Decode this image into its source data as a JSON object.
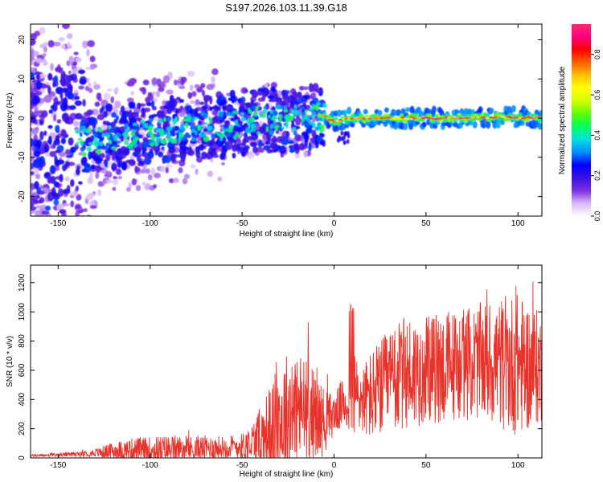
{
  "title": "S197.2026.103.11.39.G18",
  "chart_data": [
    {
      "type": "heatmap",
      "xlabel": "Height of straight line (km)",
      "ylabel": "Frequency (Hz)",
      "xlim": [
        -165,
        113
      ],
      "ylim": [
        -25,
        24
      ],
      "xticks": [
        -150,
        -100,
        -50,
        0,
        50,
        100
      ],
      "xtick_labels": [
        "-150",
        "-100",
        "-50",
        "0",
        "50",
        "100"
      ],
      "yticks": [
        -20,
        -10,
        0,
        10,
        20
      ],
      "ytick_labels": [
        "-20",
        "-10",
        "0",
        "10",
        "20"
      ],
      "colorbar": {
        "label": "Normalized spectral amplitude",
        "range": [
          0,
          0.95
        ],
        "ticks": [
          0.0,
          0.2,
          0.4,
          0.6,
          0.8
        ],
        "tick_labels": [
          "0.0",
          "0.2",
          "0.4",
          "0.6",
          "0.8"
        ],
        "colormap": [
          "#ffffff",
          "#d8b8f8",
          "#7a2fe0",
          "#3a10e0",
          "#0000ff",
          "#0090ff",
          "#00e0e0",
          "#00ff60",
          "#60ff00",
          "#d0ff00",
          "#ffff00",
          "#ffc000",
          "#ff6000",
          "#ff0000",
          "#ff0080",
          "#ff2a70"
        ]
      },
      "ridge": {
        "description_points": [
          [
            -140,
            -6
          ],
          [
            -120,
            -5
          ],
          [
            -100,
            -4
          ],
          [
            -80,
            -2
          ],
          [
            -60,
            -2
          ],
          [
            -40,
            -0.5
          ],
          [
            -20,
            -0.5
          ],
          [
            -5,
            0.5
          ],
          [
            0,
            -1
          ],
          [
            10,
            0
          ],
          [
            50,
            0
          ],
          [
            100,
            0.3
          ],
          [
            112,
            0
          ]
        ]
      }
    },
    {
      "type": "line",
      "xlabel": "Height of straight line (km)",
      "ylabel": "SNR (10 * v/v)",
      "xlim": [
        -165,
        113
      ],
      "ylim": [
        0,
        1320
      ],
      "xticks": [
        -150,
        -100,
        -50,
        0,
        50,
        100
      ],
      "xtick_labels": [
        "-150",
        "-100",
        "-50",
        "0",
        "50",
        "100"
      ],
      "yticks": [
        0,
        200,
        400,
        600,
        800,
        1000,
        1200
      ],
      "ytick_labels": [
        "0",
        "200",
        "400",
        "600",
        "800",
        "1000",
        "1200"
      ],
      "color": "#e8322a",
      "envelope": {
        "x": [
          -165,
          -150,
          -140,
          -130,
          -120,
          -110,
          -100,
          -90,
          -80,
          -70,
          -60,
          -50,
          -45,
          -40,
          -35,
          -30,
          -25,
          -20,
          -15,
          -10,
          -5,
          0,
          5,
          10,
          15,
          20,
          30,
          40,
          50,
          60,
          70,
          80,
          90,
          100,
          110,
          113
        ],
        "base": [
          15,
          20,
          25,
          35,
          45,
          55,
          55,
          60,
          60,
          65,
          70,
          80,
          100,
          130,
          180,
          240,
          300,
          330,
          320,
          280,
          250,
          300,
          380,
          430,
          400,
          420,
          520,
          580,
          600,
          620,
          640,
          660,
          650,
          640,
          620,
          600
        ],
        "amp": [
          10,
          15,
          20,
          30,
          70,
          90,
          100,
          110,
          100,
          100,
          90,
          100,
          150,
          250,
          350,
          450,
          500,
          480,
          400,
          350,
          250,
          150,
          200,
          380,
          250,
          350,
          400,
          450,
          400,
          450,
          420,
          450,
          500,
          550,
          450,
          400
        ]
      }
    }
  ]
}
